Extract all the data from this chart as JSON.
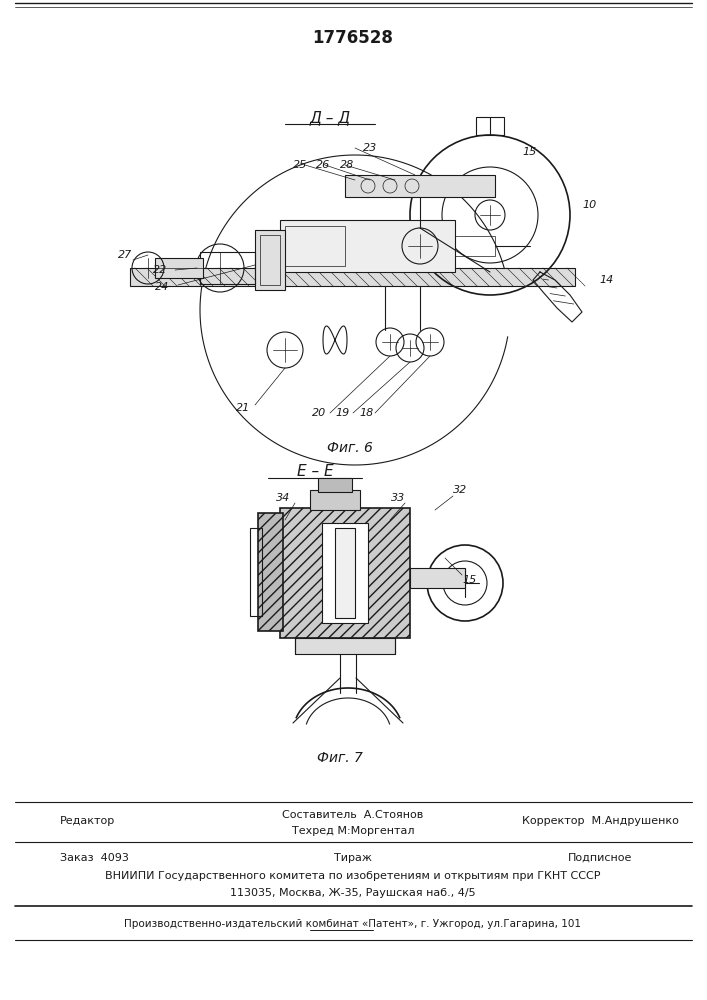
{
  "patent_number": "1776528",
  "bg_color": "#ffffff",
  "line_color": "#1a1a1a",
  "hatch_color": "#555555",
  "fig6_caption": "Фиг. 6",
  "fig6_section": "Д – Д",
  "fig7_caption": "Фиг. 7",
  "fig7_section": "Е – Е",
  "footer_editor": "Редактор",
  "footer_composer": "Составитель  А.Стоянов",
  "footer_techred": "Техред М:Моргентал",
  "footer_corrector": "Корректор  М.Андрушенко",
  "footer_order": "Заказ  4093",
  "footer_tirazh": "Тираж",
  "footer_podpisnoe": "Подписное",
  "footer_vniipи": "ВНИИПИ Государственного комитета по изобретениям и открытиям при ГКНТ СССР",
  "footer_address": "113035, Москва, Ж-35, Раушская наб., 4/5",
  "footer_producer": "Производственно-издательский комбинат «Патент», г. Ужгород, ул.Гагарина, 101"
}
